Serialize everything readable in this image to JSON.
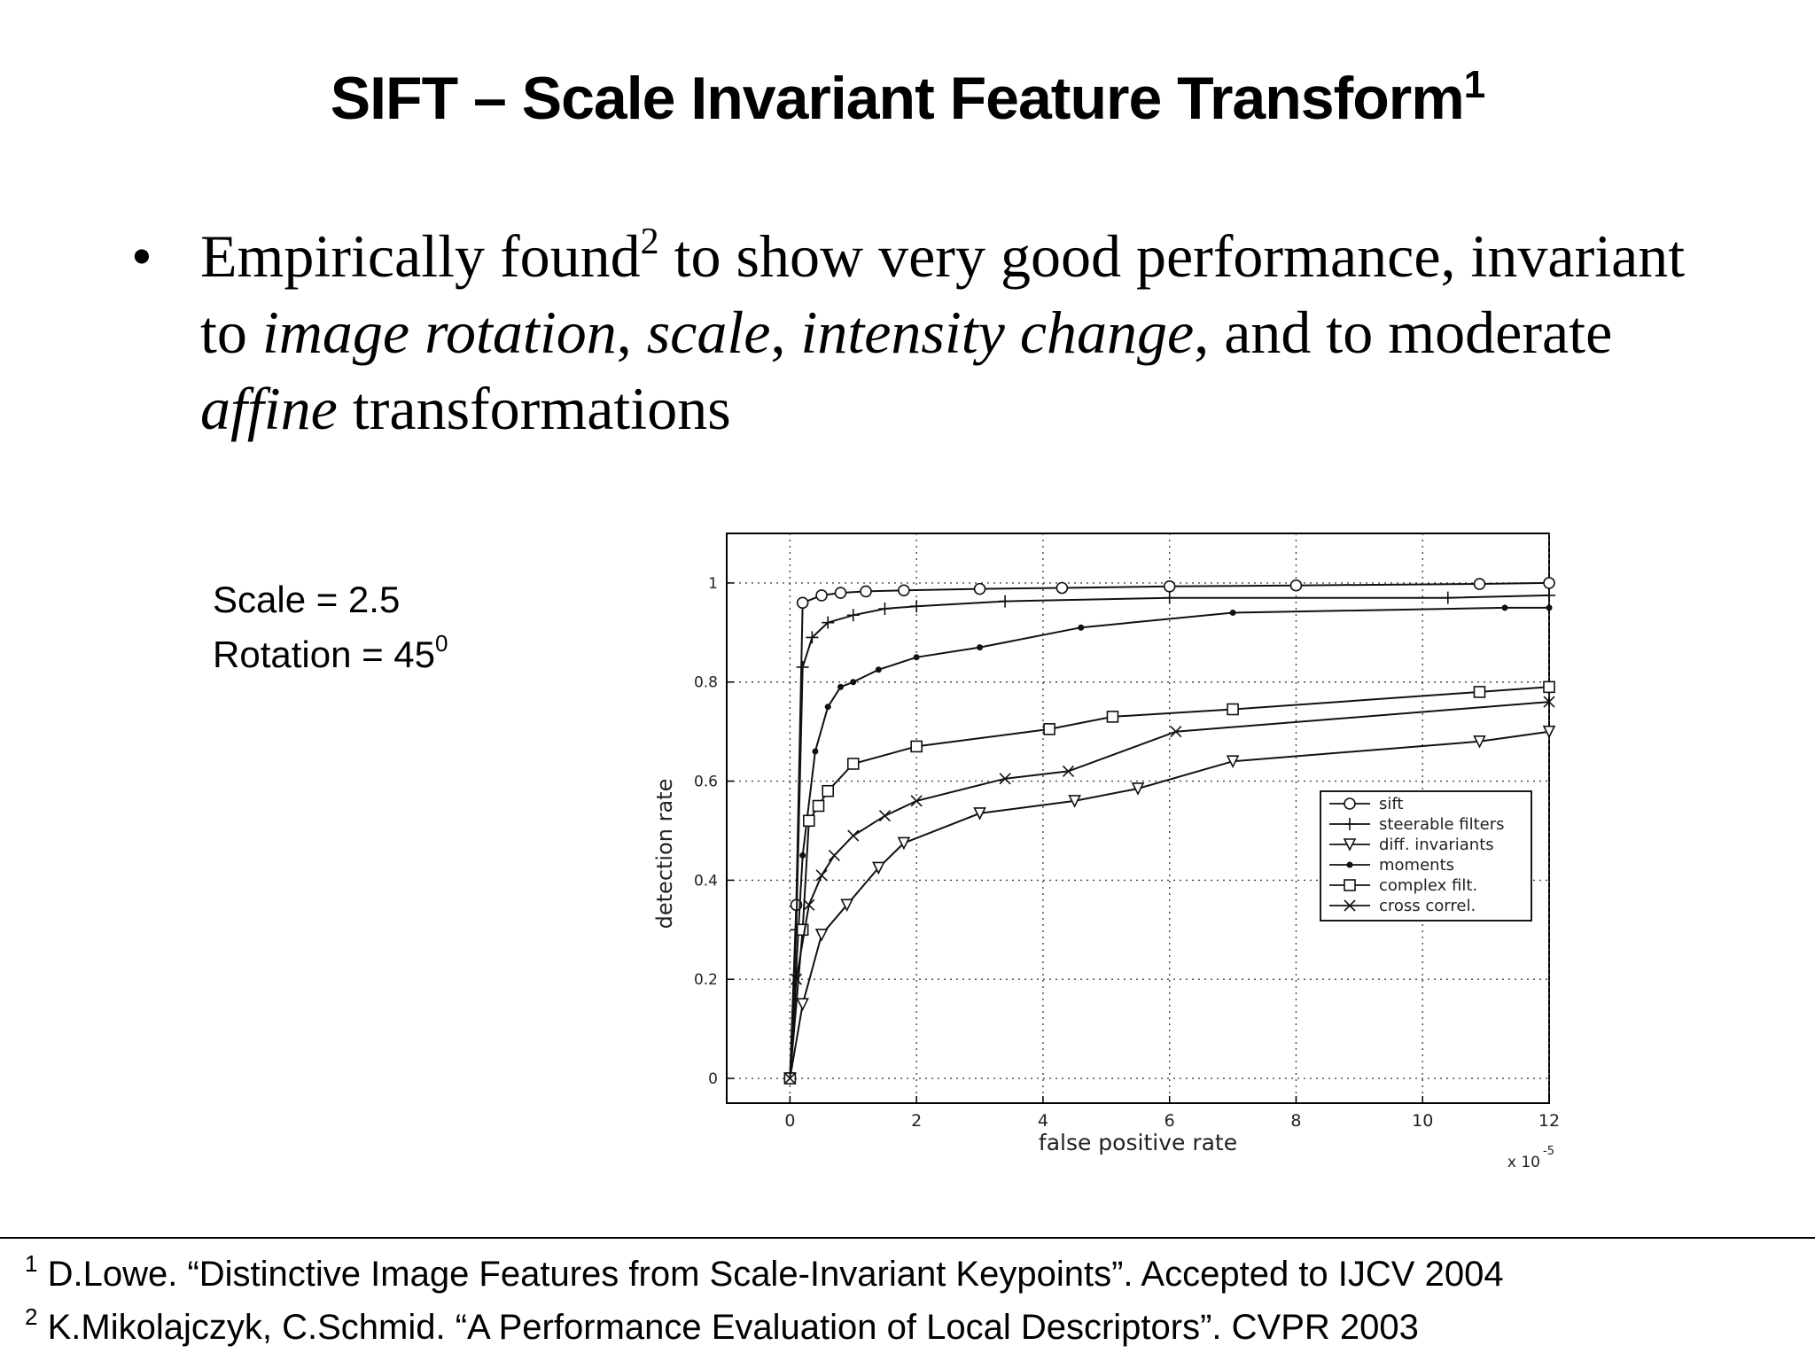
{
  "slide": {
    "title": "SIFT – Scale Invariant Feature Transform",
    "title_sup": "1",
    "bullet": {
      "p1": "Empirically found",
      "sup": "2",
      "p2": " to show very good performance, invariant to ",
      "i1": "image rotation",
      "p3": ", ",
      "i2": "scale",
      "p4": ", ",
      "i3": "intensity change",
      "p5": ", and to moderate ",
      "i4": "affine",
      "p6": " transformations"
    },
    "params": {
      "scale": "Scale = 2.5",
      "rotation": "Rotation = 45",
      "rotation_sup": "0"
    },
    "footnotes": [
      {
        "num": "1",
        "text": "D.Lowe. “Distinctive Image Features from Scale-Invariant Keypoints”. Accepted to IJCV 2004"
      },
      {
        "num": "2",
        "text": "K.Mikolajczyk, C.Schmid. “A Performance Evaluation of Local Descriptors”. CVPR 2003"
      }
    ]
  },
  "chart_data": {
    "type": "line",
    "xlabel": "false positive rate",
    "ylabel": "detection rate",
    "x_exponent_label": "x 10",
    "x_exponent": "-5",
    "xlim": [
      -1,
      12
    ],
    "ylim": [
      -0.05,
      1.1
    ],
    "xticks": [
      0,
      2,
      4,
      6,
      8,
      10,
      12
    ],
    "yticks": [
      0,
      0.2,
      0.4,
      0.6,
      0.8,
      1
    ],
    "ytick_labels": [
      "0",
      "0.2",
      "0.4",
      "0.6",
      "0.8",
      "1"
    ],
    "grid": true,
    "legend_position": "right",
    "series": [
      {
        "name": "sift",
        "marker": "circle",
        "points": [
          [
            0,
            0
          ],
          [
            0.1,
            0.35
          ],
          [
            0.2,
            0.96
          ],
          [
            0.5,
            0.975
          ],
          [
            0.8,
            0.98
          ],
          [
            1.2,
            0.983
          ],
          [
            1.8,
            0.985
          ],
          [
            3,
            0.988
          ],
          [
            4.3,
            0.99
          ],
          [
            6,
            0.993
          ],
          [
            8,
            0.995
          ],
          [
            10.9,
            0.998
          ],
          [
            12,
            1.0
          ]
        ]
      },
      {
        "name": "steerable filters",
        "marker": "plus",
        "points": [
          [
            0,
            0
          ],
          [
            0.1,
            0.3
          ],
          [
            0.2,
            0.83
          ],
          [
            0.35,
            0.89
          ],
          [
            0.6,
            0.92
          ],
          [
            1,
            0.935
          ],
          [
            1.5,
            0.948
          ],
          [
            2,
            0.953
          ],
          [
            3.4,
            0.963
          ],
          [
            6,
            0.97
          ],
          [
            10.4,
            0.97
          ],
          [
            12,
            0.975
          ]
        ]
      },
      {
        "name": "diff. invariants",
        "marker": "triangle-down",
        "points": [
          [
            0,
            0
          ],
          [
            0.2,
            0.15
          ],
          [
            0.5,
            0.29
          ],
          [
            0.9,
            0.35
          ],
          [
            1.4,
            0.425
          ],
          [
            1.8,
            0.475
          ],
          [
            3,
            0.535
          ],
          [
            4.5,
            0.56
          ],
          [
            5.5,
            0.585
          ],
          [
            7,
            0.64
          ],
          [
            10.9,
            0.68
          ],
          [
            12,
            0.7
          ]
        ]
      },
      {
        "name": "moments",
        "marker": "dot",
        "points": [
          [
            0,
            0
          ],
          [
            0.2,
            0.45
          ],
          [
            0.4,
            0.66
          ],
          [
            0.6,
            0.75
          ],
          [
            0.8,
            0.79
          ],
          [
            1,
            0.8
          ],
          [
            1.4,
            0.825
          ],
          [
            2,
            0.85
          ],
          [
            3,
            0.87
          ],
          [
            4.6,
            0.91
          ],
          [
            7,
            0.94
          ],
          [
            11.3,
            0.95
          ],
          [
            12,
            0.95
          ]
        ]
      },
      {
        "name": "complex filt.",
        "marker": "square",
        "points": [
          [
            0,
            0
          ],
          [
            0.2,
            0.3
          ],
          [
            0.3,
            0.52
          ],
          [
            0.45,
            0.55
          ],
          [
            0.6,
            0.58
          ],
          [
            1,
            0.635
          ],
          [
            2,
            0.67
          ],
          [
            4.1,
            0.705
          ],
          [
            5.1,
            0.73
          ],
          [
            7,
            0.745
          ],
          [
            10.9,
            0.78
          ],
          [
            12,
            0.79
          ]
        ]
      },
      {
        "name": "cross correl.",
        "marker": "cross",
        "points": [
          [
            0,
            0
          ],
          [
            0.1,
            0.2
          ],
          [
            0.3,
            0.35
          ],
          [
            0.5,
            0.41
          ],
          [
            0.7,
            0.45
          ],
          [
            1,
            0.49
          ],
          [
            1.5,
            0.53
          ],
          [
            2,
            0.56
          ],
          [
            3.4,
            0.605
          ],
          [
            4.4,
            0.62
          ],
          [
            6.1,
            0.7
          ],
          [
            12,
            0.76
          ]
        ]
      }
    ]
  }
}
